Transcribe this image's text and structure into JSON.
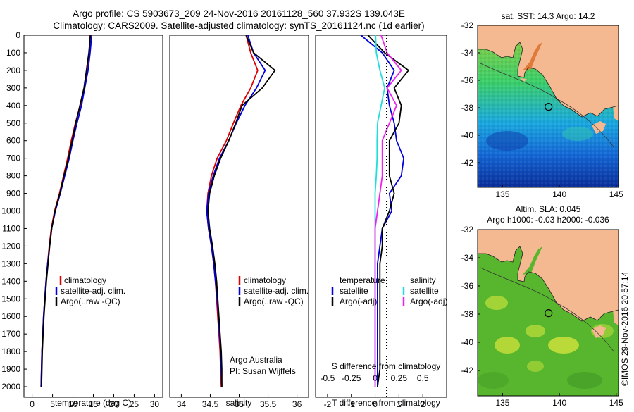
{
  "header": {
    "line1": "Argo profile: CS 5903673_209 24-Nov-2016 20161128_560 37.932S 139.043E",
    "line2": "Climatology: CARS2009. Satellite-adjusted climatology: synTS_20161124.nc (1d earlier)"
  },
  "colors": {
    "climatology": "#dd0000",
    "satellite": "#0000dd",
    "argo": "#000000",
    "sal_satellite": "#22dddd",
    "sal_argo": "#ee22ee",
    "land": "#f4b990"
  },
  "depth_axis": {
    "ylim": [
      0,
      2060
    ],
    "ticks": [
      0,
      100,
      200,
      300,
      400,
      500,
      600,
      700,
      800,
      900,
      1000,
      1100,
      1200,
      1300,
      1400,
      1500,
      1600,
      1700,
      1800,
      1900,
      2000
    ]
  },
  "chart_data": [
    {
      "type": "line",
      "xlabel": "temperature (deg C)",
      "xlim": [
        -2,
        32
      ],
      "xticks": [
        0,
        5,
        10,
        15,
        20,
        25,
        30
      ],
      "legend": [
        "climatology",
        "satellite-adj. clim.",
        "Argo(..raw -QC)"
      ],
      "series": [
        {
          "name": "climatology",
          "color": "#dd0000",
          "x": [
            14.2,
            14.0,
            13.6,
            12.8,
            11.8,
            10.6,
            9.6,
            8.7,
            7.7,
            6.7,
            5.5,
            4.7,
            4.2,
            3.8,
            3.4,
            3.1,
            2.8,
            2.6,
            2.4,
            2.3,
            2.2
          ],
          "y": [
            0,
            100,
            200,
            300,
            400,
            500,
            600,
            700,
            800,
            900,
            1000,
            1100,
            1200,
            1300,
            1400,
            1500,
            1600,
            1700,
            1800,
            1900,
            2000
          ]
        },
        {
          "name": "satellite-adj. clim.",
          "color": "#0000dd",
          "x": [
            14.6,
            14.2,
            13.7,
            12.9,
            12.1,
            11.0,
            10.0,
            9.1,
            8.0,
            6.9,
            5.7,
            4.8,
            4.3,
            3.8,
            3.4,
            3.1,
            2.8,
            2.6,
            2.4,
            2.3,
            2.2
          ],
          "y": [
            0,
            100,
            200,
            300,
            400,
            500,
            600,
            700,
            800,
            900,
            1000,
            1100,
            1200,
            1300,
            1400,
            1500,
            1600,
            1700,
            1800,
            1900,
            2000
          ]
        },
        {
          "name": "Argo(..raw -QC)",
          "color": "#000000",
          "x": [
            14.3,
            13.9,
            13.3,
            12.7,
            11.7,
            10.7,
            9.8,
            8.9,
            7.8,
            6.8,
            5.6,
            4.8,
            4.3,
            3.9,
            3.5,
            3.2,
            2.9,
            2.7,
            2.5,
            2.4,
            2.3
          ],
          "y": [
            0,
            100,
            200,
            300,
            400,
            500,
            600,
            700,
            800,
            900,
            1000,
            1100,
            1200,
            1300,
            1400,
            1500,
            1600,
            1700,
            1800,
            1900,
            2000
          ]
        }
      ]
    },
    {
      "type": "line",
      "xlabel": "salinity",
      "xlim": [
        33.8,
        36.2
      ],
      "xticks": [
        34,
        34.5,
        35,
        35.5,
        36
      ],
      "legend": [
        "climatology",
        "satellite-adj. clim.",
        "Argo(..raw -QC)"
      ],
      "annotation": [
        "Argo Australia",
        "PI: Susan Wijffels"
      ],
      "series": [
        {
          "name": "climatology",
          "color": "#dd0000",
          "x": [
            35.12,
            35.2,
            35.32,
            35.2,
            35.03,
            34.9,
            34.78,
            34.62,
            34.52,
            34.46,
            34.44,
            34.47,
            34.52,
            34.56,
            34.59,
            34.61,
            34.63,
            34.65,
            34.67,
            34.68,
            34.69
          ],
          "y": [
            0,
            100,
            200,
            300,
            400,
            500,
            600,
            700,
            800,
            900,
            1000,
            1100,
            1200,
            1300,
            1400,
            1500,
            1600,
            1700,
            1800,
            1900,
            2000
          ]
        },
        {
          "name": "satellite-adj. clim.",
          "color": "#0000dd",
          "x": [
            35.15,
            35.25,
            35.45,
            35.3,
            35.1,
            34.95,
            34.82,
            34.66,
            34.55,
            34.47,
            34.44,
            34.47,
            34.52,
            34.56,
            34.59,
            34.62,
            34.64,
            34.66,
            34.68,
            34.69,
            34.7
          ],
          "y": [
            0,
            100,
            200,
            300,
            400,
            500,
            600,
            700,
            800,
            900,
            1000,
            1100,
            1200,
            1300,
            1400,
            1500,
            1600,
            1700,
            1800,
            1900,
            2000
          ]
        },
        {
          "name": "Argo(..raw -QC)",
          "color": "#000000",
          "x": [
            35.12,
            35.25,
            35.62,
            35.4,
            35.05,
            34.94,
            34.82,
            34.68,
            34.57,
            34.49,
            34.46,
            34.49,
            34.54,
            34.58,
            34.61,
            34.63,
            34.65,
            34.67,
            34.69,
            34.7,
            34.7
          ],
          "y": [
            0,
            100,
            200,
            300,
            400,
            500,
            600,
            700,
            800,
            900,
            1000,
            1100,
            1200,
            1300,
            1400,
            1500,
            1600,
            1700,
            1800,
            1900,
            2000
          ]
        }
      ]
    },
    {
      "type": "line",
      "xlabel": "T difference from climatology",
      "top_label": "S difference from climatology",
      "xlim": [
        -2.5,
        3.0
      ],
      "xticks_bottom": [
        -2,
        -1,
        0,
        1,
        2
      ],
      "xticks_top": [
        "-0.5",
        "-0.25",
        "0",
        "0.25",
        "0.5"
      ],
      "legend_temperature": {
        "title": "temperature",
        "items": [
          "satellite",
          "Argo(-adj)"
        ]
      },
      "legend_salinity": {
        "title": "salinity",
        "items": [
          "satellite",
          "Argo(-adj)"
        ]
      },
      "series": [
        {
          "name": "temperature satellite",
          "color": "#0000dd",
          "x": [
            -0.6,
            0.3,
            0.8,
            0.5,
            0.6,
            0.8,
            0.9,
            1.2,
            1.1,
            0.6,
            0.7,
            0.3,
            0.2,
            0.1,
            0.1,
            0.1,
            0.1,
            0.1,
            0.1,
            0.1,
            0.1
          ],
          "y": [
            0,
            100,
            200,
            300,
            400,
            500,
            600,
            700,
            800,
            900,
            1000,
            1100,
            1200,
            1300,
            1400,
            1500,
            1600,
            1700,
            1800,
            1900,
            2000
          ]
        },
        {
          "name": "temperature Argo(-adj)",
          "color": "#000000",
          "x": [
            -0.3,
            0.4,
            1.4,
            0.8,
            1.1,
            1.0,
            0.6,
            0.6,
            0.6,
            0.8,
            0.6,
            0.3,
            0.3,
            0.2,
            0.2,
            0.2,
            0.2,
            0.2,
            0.2,
            0.2,
            0.1
          ],
          "y": [
            0,
            100,
            200,
            300,
            400,
            500,
            600,
            700,
            800,
            900,
            1000,
            1100,
            1200,
            1300,
            1400,
            1500,
            1600,
            1700,
            1800,
            1900,
            2000
          ]
        },
        {
          "name": "salinity satellite",
          "color": "#22dddd",
          "x": [
            0.02,
            0.05,
            0.2,
            0.4,
            0.25,
            0.1,
            0.08,
            0.08,
            0.05,
            0.0,
            0.0,
            0.0,
            0.0,
            0.0,
            0.0,
            0.0,
            0.0,
            0.0,
            0.0,
            0.0,
            0.0
          ],
          "y": [
            0,
            100,
            200,
            300,
            400,
            500,
            600,
            700,
            800,
            900,
            1000,
            1100,
            1200,
            1300,
            1400,
            1500,
            1600,
            1700,
            1800,
            1900,
            2000
          ]
        },
        {
          "name": "salinity Argo(-adj)",
          "color": "#ee22ee",
          "x": [
            0.25,
            0.5,
            1.1,
            0.5,
            0.9,
            0.6,
            0.3,
            0.3,
            0.3,
            0.2,
            0.1,
            0.0,
            0.0,
            0.0,
            0.0,
            0.0,
            0.0,
            0.0,
            0.0,
            0.0,
            0.0
          ],
          "y": [
            0,
            100,
            200,
            300,
            400,
            500,
            600,
            700,
            800,
            900,
            1000,
            1100,
            1200,
            1300,
            1400,
            1500,
            1600,
            1700,
            1800,
            1900,
            2000
          ]
        }
      ]
    }
  ],
  "maps": [
    {
      "title": "sat. SST: 14.3 Argo: 14.2",
      "title2": "",
      "xticks": [
        135,
        140,
        145
      ],
      "yticks": [
        -32,
        -34,
        -36,
        -38,
        -40,
        -42
      ],
      "lon_range": [
        132.8,
        145.2
      ],
      "lat_range": [
        -43.8,
        -32.0
      ],
      "float_lon": 139.043,
      "float_lat": -37.932
    },
    {
      "title": "Altim. SLA: 0.045",
      "title2": "Argo h1000: -0.03 h2000: -0.036",
      "xticks": [
        135,
        140,
        145
      ],
      "yticks": [
        -32,
        -34,
        -36,
        -38,
        -40,
        -42
      ],
      "lon_range": [
        132.8,
        145.2
      ],
      "lat_range": [
        -43.8,
        -32.0
      ],
      "float_lon": 139.043,
      "float_lat": -37.932
    }
  ],
  "credit": "©IMOS 29-Nov-2016 20:57:14"
}
